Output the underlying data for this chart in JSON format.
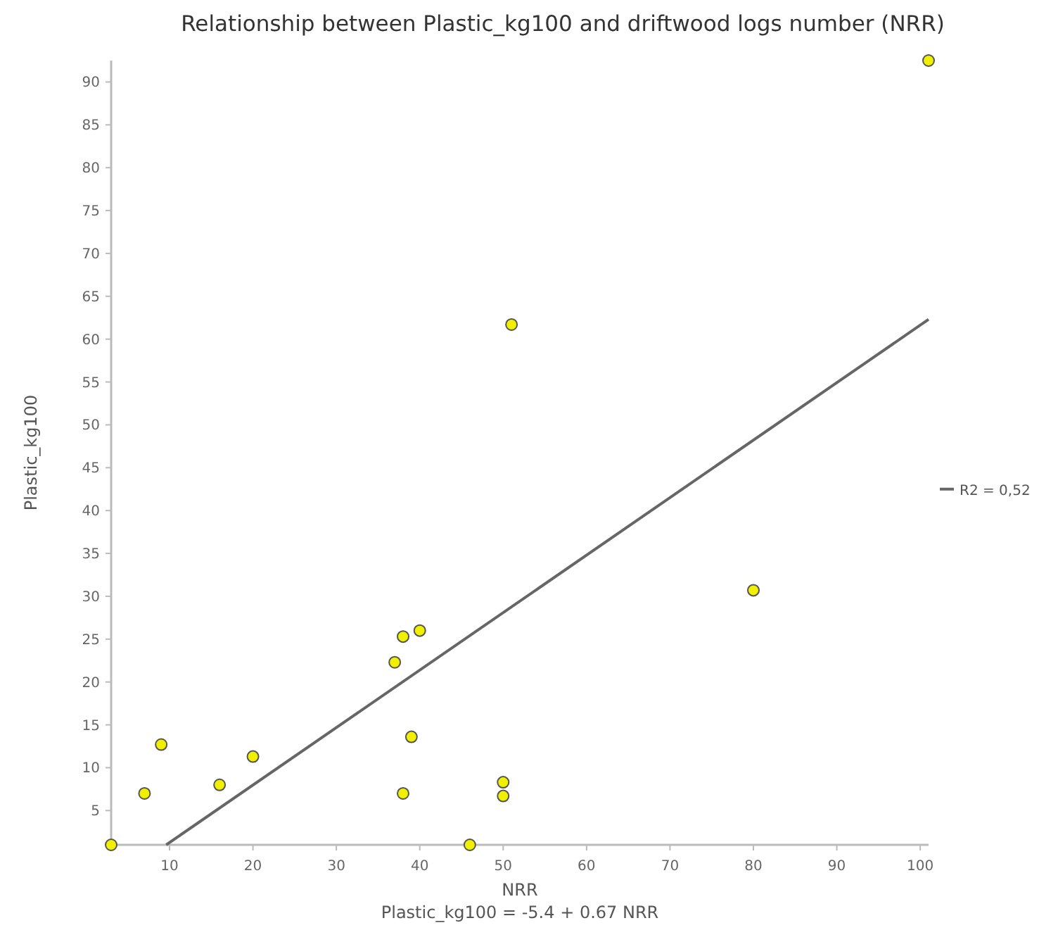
{
  "chart_data": {
    "type": "scatter",
    "title": "Relationship between Plastic_kg100 and driftwood logs number (NRR)",
    "xlabel": "NRR",
    "ylabel": "Plastic_kg100",
    "annotations": [
      "Plastic_kg100 = -5.4 + 0.67 NRR"
    ],
    "xlim": [
      3,
      101
    ],
    "ylim": [
      1,
      92.5
    ],
    "xticks": [
      10,
      20,
      30,
      40,
      50,
      60,
      70,
      80,
      90,
      100
    ],
    "yticks": [
      5,
      10,
      15,
      20,
      25,
      30,
      35,
      40,
      45,
      50,
      55,
      60,
      65,
      70,
      75,
      80,
      85,
      90
    ],
    "grid": false,
    "legend": "right",
    "series": [
      {
        "marker": "circle",
        "color": "#f0f000",
        "x": [
          3,
          7,
          9,
          16,
          20,
          37,
          38,
          40,
          39,
          38,
          46,
          50,
          50,
          51,
          80,
          101
        ],
        "values": [
          1,
          7,
          12.7,
          8,
          11.3,
          22.3,
          25.3,
          26,
          13.6,
          7,
          1,
          8.3,
          6.7,
          61.7,
          30.7,
          92.5
        ]
      },
      {
        "type": "line",
        "name": "R2 = 0,52",
        "color": "#666666",
        "line_style": "solid",
        "marker": "none",
        "x": [
          9.6,
          101
        ],
        "values": [
          1.0,
          62.3
        ]
      }
    ]
  }
}
